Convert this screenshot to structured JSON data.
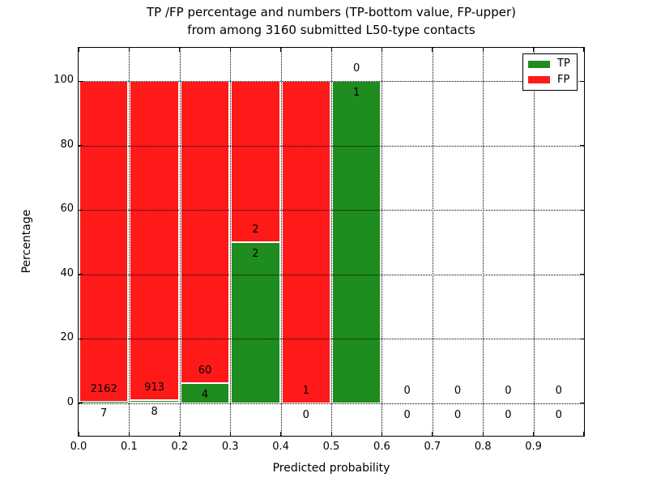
{
  "chart_data": {
    "type": "bar",
    "stacked": true,
    "title_line1": "TP /FP percentage and numbers (TP-bottom value, FP-upper)",
    "title_line2": "from among 3160 submitted L50-type contacts",
    "xlabel": "Predicted probability",
    "ylabel": "Percentage",
    "xlim": [
      0.0,
      1.0
    ],
    "ylim": [
      -10,
      110.5
    ],
    "grid": "dotted both axes",
    "legend_position": "upper right",
    "bin_edges": [
      0.0,
      0.1,
      0.2,
      0.3,
      0.4,
      0.5,
      0.6,
      0.7,
      0.8,
      0.9,
      1.0
    ],
    "x_tick_labels": [
      "0.0",
      "0.1",
      "0.2",
      "0.3",
      "0.4",
      "0.5",
      "0.6",
      "0.7",
      "0.8",
      "0.9"
    ],
    "y_tick_labels": [
      "0",
      "20",
      "40",
      "60",
      "80",
      "100"
    ],
    "y_tick_values": [
      0,
      20,
      40,
      60,
      80,
      100
    ],
    "colors": {
      "tp": "#1e8c1e",
      "fp": "#ff1a1a",
      "bar_edge": "#ffffff"
    },
    "legend": [
      {
        "label": "TP",
        "color": "#1e8c1e"
      },
      {
        "label": "FP",
        "color": "#ff1a1a"
      }
    ],
    "series": [
      {
        "name": "TP",
        "position": "bottom",
        "counts": [
          7,
          8,
          4,
          2,
          0,
          1,
          0,
          0,
          0,
          0
        ],
        "pct": [
          0.32,
          0.87,
          6.25,
          50,
          0,
          100,
          0,
          0,
          0,
          0
        ]
      },
      {
        "name": "FP",
        "position": "top",
        "counts": [
          2162,
          913,
          60,
          2,
          1,
          0,
          0,
          0,
          0,
          0
        ],
        "pct": [
          99.68,
          99.13,
          93.75,
          50,
          100,
          0,
          0,
          0,
          0,
          0
        ]
      }
    ],
    "total_submitted": "3160"
  }
}
